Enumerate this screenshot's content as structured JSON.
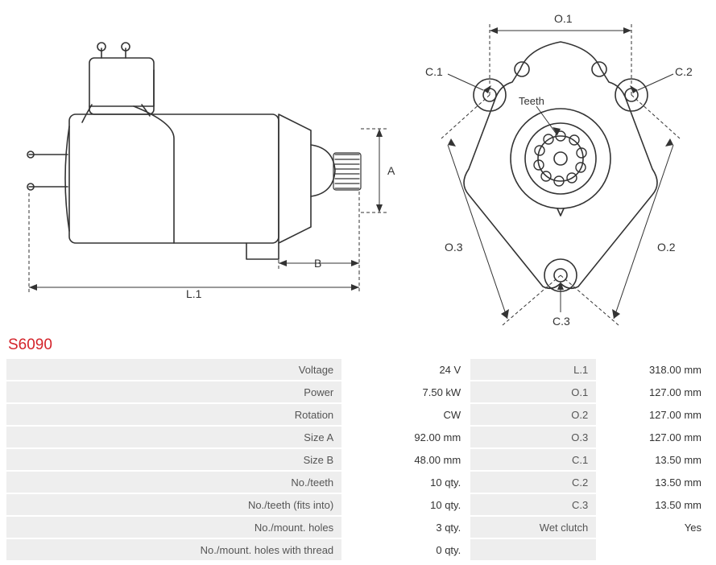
{
  "partNumber": "S6090",
  "colors": {
    "accent": "#d4232a",
    "line": "#333333",
    "dim": "#333333",
    "tableHeaderBg": "#eeeeee",
    "tableCellBg": "#ffffff",
    "textMuted": "#555555"
  },
  "diagrams": {
    "side": {
      "labels": {
        "A": "A",
        "B": "B",
        "L1": "L.1"
      },
      "strokeWidth": 1.3,
      "dashPattern": "4 3"
    },
    "front": {
      "labels": {
        "O1": "O.1",
        "O2": "O.2",
        "O3": "O.3",
        "C1": "C.1",
        "C2": "C.2",
        "C3": "C.3",
        "Teeth": "Teeth"
      },
      "strokeWidth": 1.3,
      "dashPattern": "4 3"
    }
  },
  "specs": {
    "left": [
      {
        "label": "Voltage",
        "value": "24 V"
      },
      {
        "label": "Power",
        "value": "7.50 kW"
      },
      {
        "label": "Rotation",
        "value": "CW"
      },
      {
        "label": "Size A",
        "value": "92.00 mm"
      },
      {
        "label": "Size B",
        "value": "48.00 mm"
      },
      {
        "label": "No./teeth",
        "value": "10 qty."
      },
      {
        "label": "No./teeth (fits into)",
        "value": "10 qty."
      },
      {
        "label": "No./mount. holes",
        "value": "3 qty."
      },
      {
        "label": "No./mount. holes with thread",
        "value": "0 qty."
      }
    ],
    "right": [
      {
        "label": "L.1",
        "value": "318.00 mm"
      },
      {
        "label": "O.1",
        "value": "127.00 mm"
      },
      {
        "label": "O.2",
        "value": "127.00 mm"
      },
      {
        "label": "O.3",
        "value": "127.00 mm"
      },
      {
        "label": "C.1",
        "value": "13.50 mm"
      },
      {
        "label": "C.2",
        "value": "13.50 mm"
      },
      {
        "label": "C.3",
        "value": "13.50 mm"
      },
      {
        "label": "Wet clutch",
        "value": "Yes"
      },
      {
        "label": "",
        "value": ""
      }
    ]
  }
}
